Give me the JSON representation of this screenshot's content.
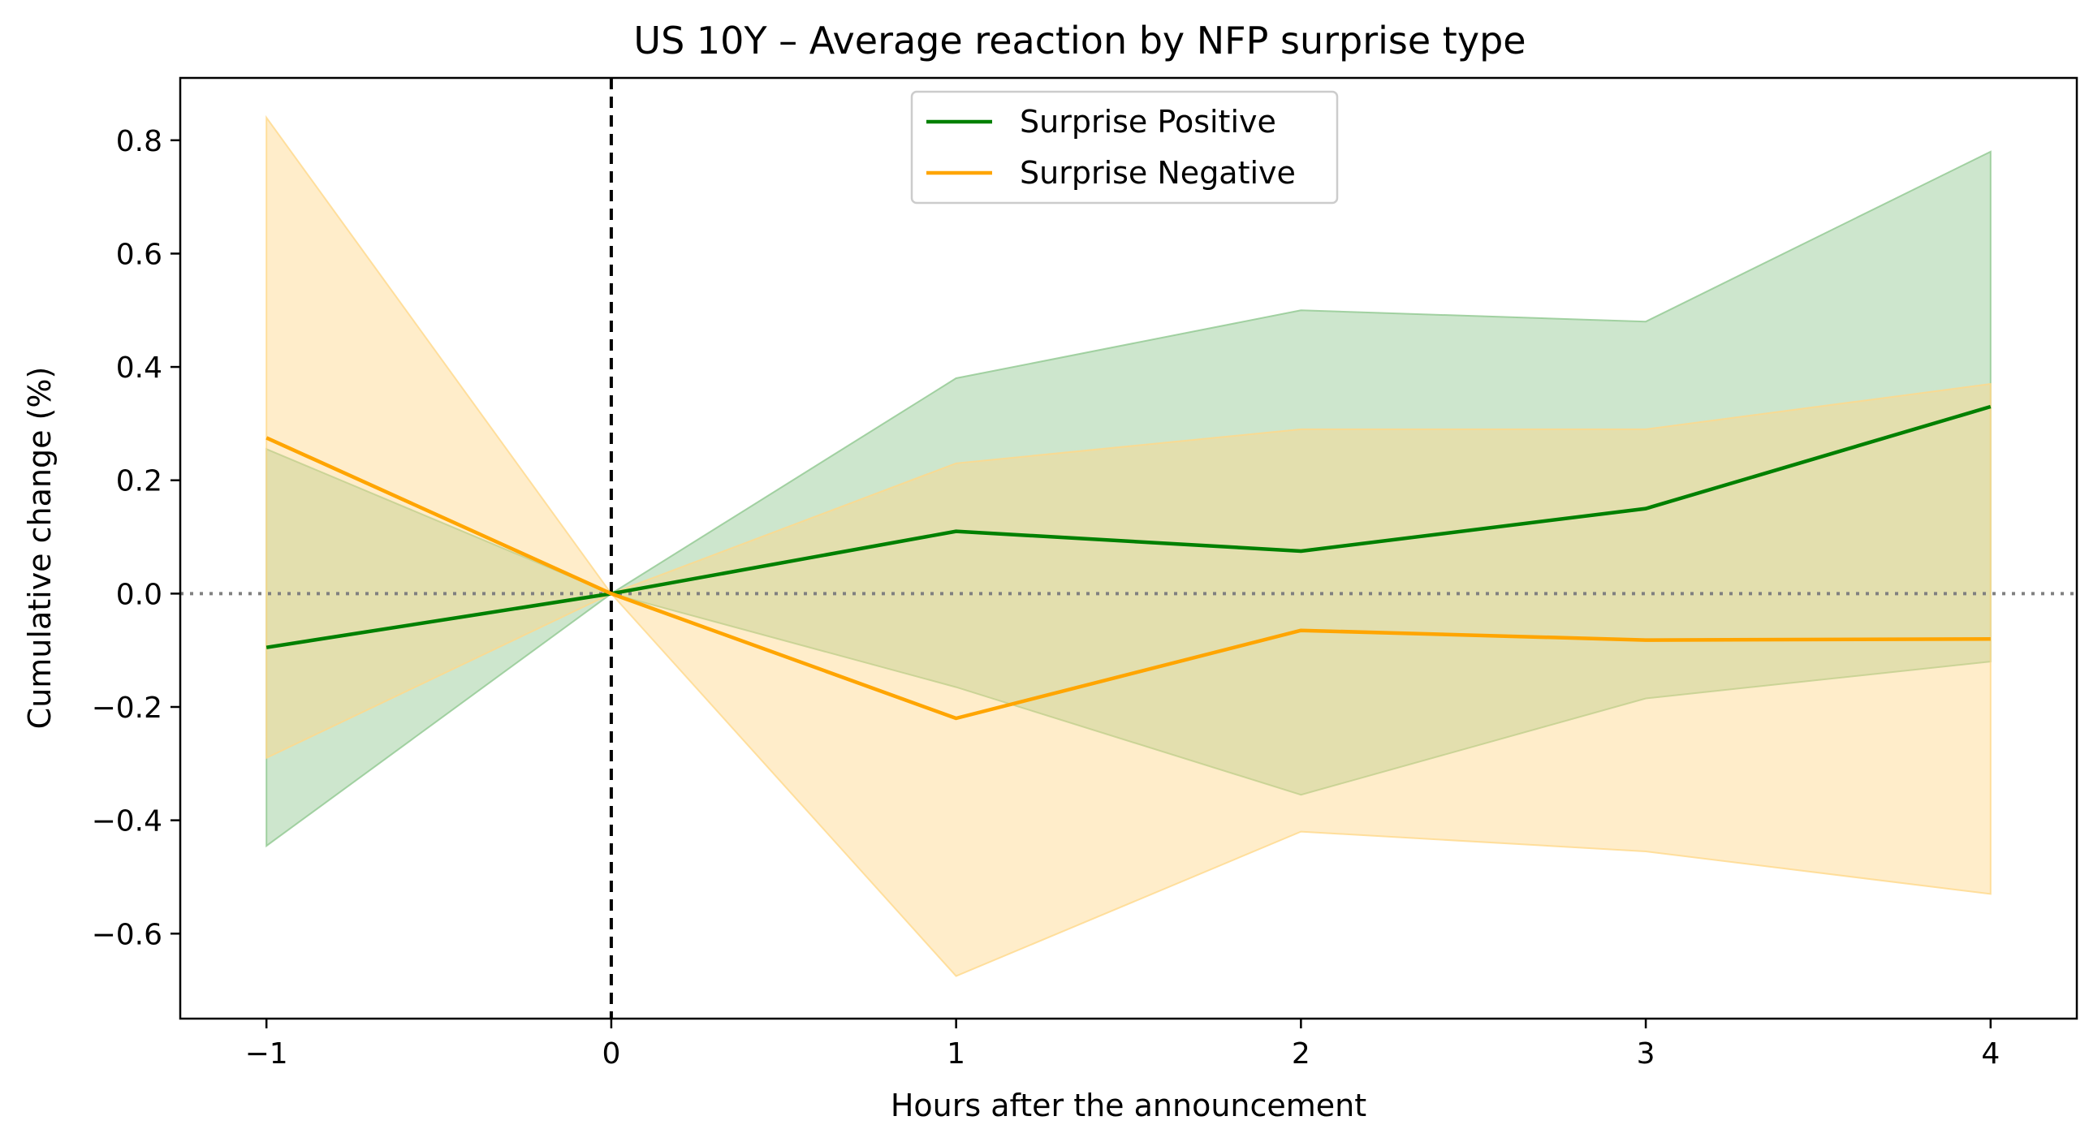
{
  "chart_data": {
    "type": "line",
    "title": "US 10Y – Average reaction by NFP surprise type",
    "xlabel": "Hours after the announcement",
    "ylabel": "Cumulative change (%)",
    "x": [
      -1,
      0,
      1,
      2,
      3,
      4
    ],
    "xlim": [
      -1.25,
      4.25
    ],
    "ylim": [
      -0.75,
      0.91
    ],
    "x_ticks": [
      -1,
      0,
      1,
      2,
      3,
      4
    ],
    "x_tick_labels": [
      "−1",
      "0",
      "1",
      "2",
      "3",
      "4"
    ],
    "y_ticks": [
      -0.6,
      -0.4,
      -0.2,
      0.0,
      0.2,
      0.4,
      0.6,
      0.8
    ],
    "y_tick_labels": [
      "−0.6",
      "−0.4",
      "−0.2",
      "0.0",
      "0.2",
      "0.4",
      "0.6",
      "0.8"
    ],
    "grid": false,
    "legend_position": "top-center",
    "reference_lines": [
      {
        "orientation": "vertical",
        "value": 0,
        "style": "dashed",
        "color": "#000000"
      },
      {
        "orientation": "horizontal",
        "value": 0,
        "style": "dotted",
        "color": "#808080"
      }
    ],
    "series": [
      {
        "name": "Surprise Positive",
        "color": "#008000",
        "band_color": "#90c890",
        "values": [
          -0.095,
          0.0,
          0.11,
          0.075,
          0.15,
          0.33
        ],
        "upper": [
          0.255,
          0.0,
          0.38,
          0.5,
          0.48,
          0.78
        ],
        "lower": [
          -0.445,
          0.0,
          -0.165,
          -0.355,
          -0.185,
          -0.12
        ]
      },
      {
        "name": "Surprise Negative",
        "color": "#ffa500",
        "band_color": "#ffd88a",
        "values": [
          0.275,
          0.0,
          -0.22,
          -0.065,
          -0.082,
          -0.08
        ],
        "upper": [
          0.84,
          0.0,
          0.23,
          0.29,
          0.29,
          0.37
        ],
        "lower": [
          -0.29,
          0.0,
          -0.675,
          -0.42,
          -0.455,
          -0.53
        ]
      }
    ]
  }
}
